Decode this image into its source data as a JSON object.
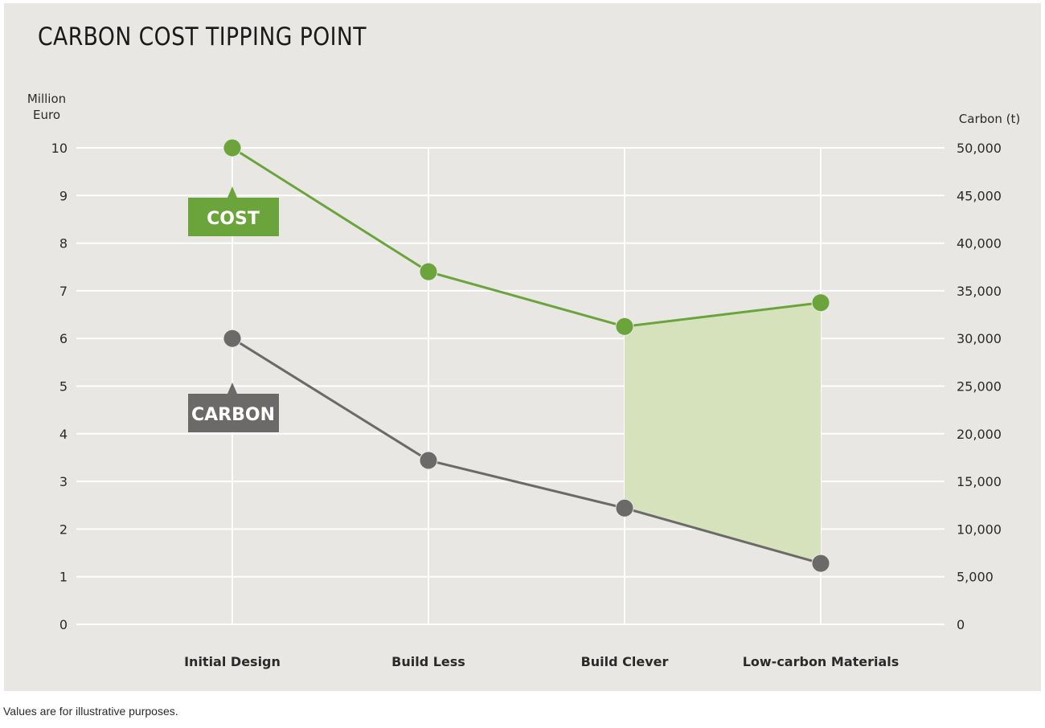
{
  "chart_data": {
    "type": "line",
    "title": "CARBON COST TIPPING POINT",
    "categories": [
      "Initial Design",
      "Build Less",
      "Build Clever",
      "Low-carbon Materials"
    ],
    "ylabel_left": [
      "Million",
      "Euro"
    ],
    "ylabel_right": "Carbon (t)",
    "ylim_left": [
      0,
      10
    ],
    "ylim_right": [
      0,
      50000
    ],
    "yticks_left": [
      "0",
      "1",
      "2",
      "3",
      "4",
      "5",
      "6",
      "7",
      "8",
      "9",
      "10"
    ],
    "yticks_right": [
      "0",
      "5,000",
      "10,000",
      "15,000",
      "20,000",
      "25,000",
      "30,000",
      "35,000",
      "40,000",
      "45,000",
      "50,000"
    ],
    "series": [
      {
        "name": "COST",
        "axis": "left",
        "color": "#6aa43a",
        "values": [
          10,
          7.4,
          6.25,
          6.75
        ]
      },
      {
        "name": "CARBON",
        "axis": "right",
        "color": "#6b6a69",
        "values": [
          30000,
          17200,
          12200,
          6400
        ]
      }
    ],
    "shaded_region": {
      "from_category": "Build Clever",
      "to_category": "Low-carbon Materials",
      "color": "#d6e2bb"
    },
    "grid": true
  },
  "footnote": "Values are for illustrative purposes."
}
